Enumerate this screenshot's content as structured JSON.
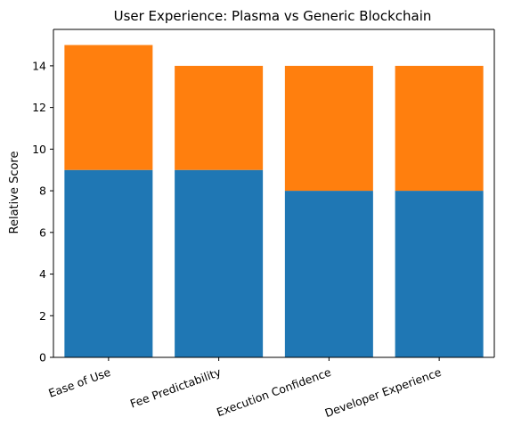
{
  "chart_data": {
    "type": "bar",
    "stacked": true,
    "title": "User Experience: Plasma vs Generic Blockchain",
    "xlabel": "",
    "ylabel": "Relative Score",
    "categories": [
      "Ease of Use",
      "Fee Predictability",
      "Execution Confidence",
      "Developer Experience"
    ],
    "series": [
      {
        "values": [
          9,
          9,
          8,
          8
        ],
        "color": "#1f77b4"
      },
      {
        "values": [
          6,
          5,
          6,
          6
        ],
        "color": "#ff7f0e"
      }
    ],
    "ylim": [
      0,
      15.75
    ],
    "yticks": [
      0,
      2,
      4,
      6,
      8,
      10,
      12,
      14
    ],
    "xtick_rotation": -20,
    "grid": false,
    "legend": "none"
  }
}
